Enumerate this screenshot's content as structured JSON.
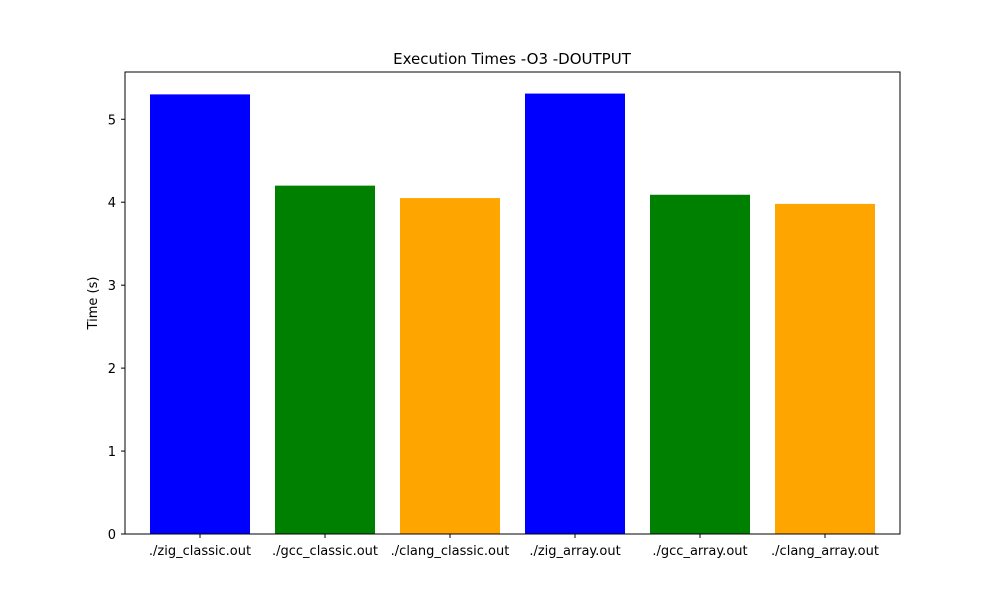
{
  "chart_data": {
    "type": "bar",
    "title": "Execution Times -O3 -DOUTPUT",
    "xlabel": "",
    "ylabel": "Time (s)",
    "categories": [
      "./zig_classic.out",
      "./gcc_classic.out",
      "./clang_classic.out",
      "./zig_array.out",
      "./gcc_array.out",
      "./clang_array.out"
    ],
    "values": [
      5.3,
      4.2,
      4.05,
      5.31,
      4.09,
      3.98
    ],
    "colors": [
      "#0000ff",
      "#008000",
      "#ffa500",
      "#0000ff",
      "#008000",
      "#ffa500"
    ],
    "ylim": [
      0,
      5.57
    ],
    "yticks": [
      0,
      1,
      2,
      3,
      4,
      5
    ],
    "grid": false,
    "legend": "none"
  }
}
